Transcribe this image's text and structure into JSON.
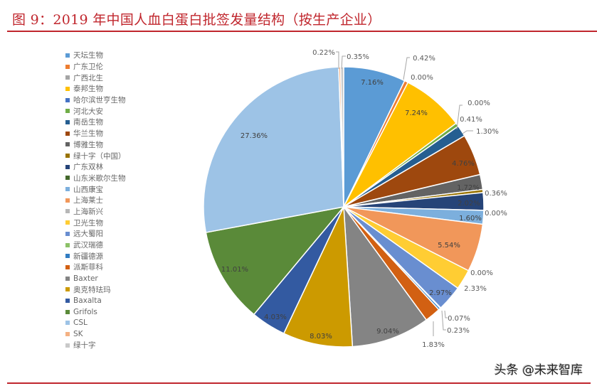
{
  "title": "图 9：2019 年中国人血白蛋白批签发量结构（按生产企业）",
  "watermark": "头条 @未来智库",
  "chart_data": {
    "type": "pie",
    "title": "图 9：2019 年中国人血白蛋白批签发量结构（按生产企业）",
    "unit": "%",
    "start_angle": "12 o'clock, clockwise",
    "legend_position": "left",
    "categories": [
      "天坛生物",
      "广东卫伦",
      "广西北生",
      "泰邦生物",
      "哈尔滨世亨生物",
      "河北大安",
      "南岳生物",
      "华兰生物",
      "博雅生物",
      "绿十字（中国）",
      "广东双林",
      "山东米歌尔生物",
      "山西康宝",
      "上海莱士",
      "上海新兴",
      "卫光生物",
      "远大蜀阳",
      "武汉瑞德",
      "新疆德源",
      "派斯菲科",
      "Baxter",
      "奥克特珐玛",
      "Baxalta",
      "Grifols",
      "CSL",
      "SK",
      "绿十字"
    ],
    "values": [
      7.16,
      0.42,
      0.0,
      7.24,
      0.0,
      0.41,
      1.3,
      4.76,
      1.72,
      0.36,
      2.02,
      0.0,
      1.6,
      5.54,
      0.0,
      2.33,
      2.97,
      0.07,
      0.23,
      1.83,
      9.04,
      8.03,
      4.03,
      11.01,
      27.36,
      0.22,
      0.35
    ],
    "labels": [
      "7.16%",
      "0.42%",
      "0.00%",
      "7.24%",
      "0.00%",
      "0.41%",
      "1.30%",
      "4.76%",
      "1.72%",
      "0.36%",
      "2.02%",
      "0.00%",
      "1.60%",
      "5.54%",
      "0.00%",
      "2.33%",
      "2.97%",
      "0.07%",
      "0.23%",
      "1.83%",
      "9.04%",
      "8.03%",
      "4.03%",
      "11.01%",
      "27.36%",
      "0.22%",
      "0.35%"
    ],
    "colors": [
      "#5b9bd5",
      "#ed7d31",
      "#a5a5a5",
      "#ffc000",
      "#4472c4",
      "#70ad47",
      "#255e91",
      "#9e480e",
      "#636363",
      "#997300",
      "#264478",
      "#43682b",
      "#7cafdd",
      "#f1975a",
      "#b7b7b7",
      "#ffcd33",
      "#698ed0",
      "#8cc168",
      "#327dc2",
      "#d26012",
      "#848484",
      "#cc9a00",
      "#335aa1",
      "#5a8a39",
      "#9dc3e6",
      "#f4b183",
      "#c9c9c9"
    ]
  }
}
